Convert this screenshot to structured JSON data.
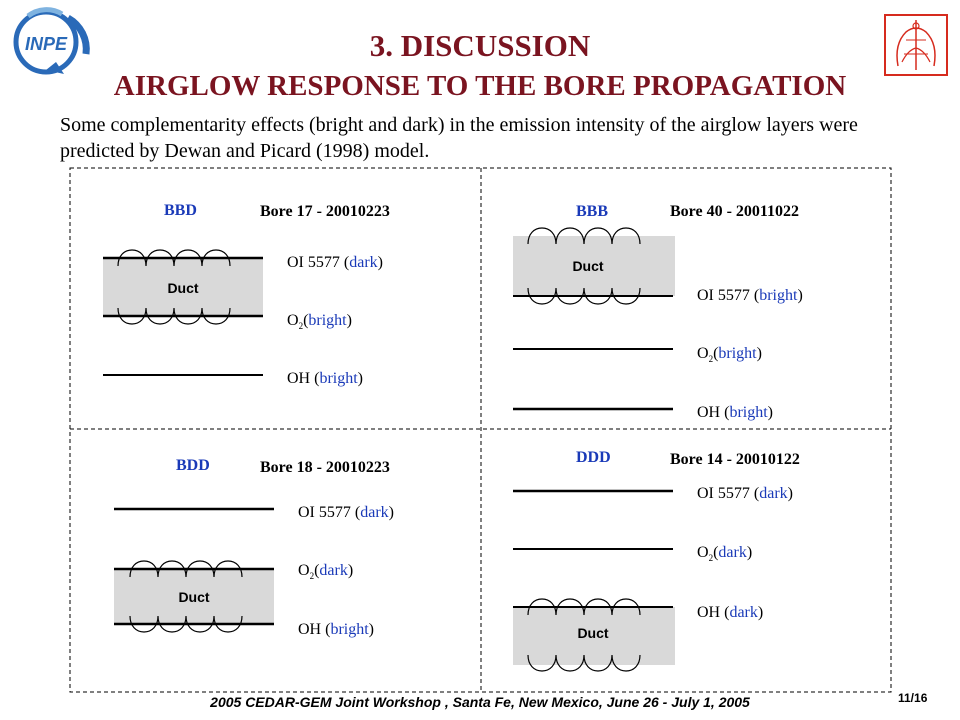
{
  "header": {
    "logo_text": "INPE",
    "title": "3. DISCUSSION",
    "subtitle": "AIRGLOW RESPONSE TO THE BORE PROPAGATION"
  },
  "intro": "Some complementarity effects (bright and dark) in the emission intensity of the airglow layers were predicted by Dewan and Picard (1998) model.",
  "panels": [
    {
      "code": "BBD",
      "bore": "Bore 17 - 20010223",
      "duct": "Duct",
      "layers": [
        {
          "name": "OI 5577 (",
          "state": "dark",
          "close": ")"
        },
        {
          "name": "O",
          "sub": "2",
          "name2": "(",
          "state": "bright",
          "close": ")"
        },
        {
          "name": "OH (",
          "state": "bright",
          "close": ")"
        }
      ]
    },
    {
      "code": "BBB",
      "bore": "Bore 40 - 20011022",
      "duct": "Duct",
      "layers": [
        {
          "name": "OI 5577 (",
          "state": "bright",
          "close": ")"
        },
        {
          "name": "O",
          "sub": "2",
          "name2": "(",
          "state": "bright",
          "close": ")"
        },
        {
          "name": "OH (",
          "state": "bright",
          "close": ")"
        }
      ]
    },
    {
      "code": "BDD",
      "bore": "Bore 18 - 20010223",
      "duct": "Duct",
      "layers": [
        {
          "name": "OI 5577 (",
          "state": "dark",
          "close": ")"
        },
        {
          "name": "O",
          "sub": "2",
          "name2": "(",
          "state": "dark",
          "close": ")"
        },
        {
          "name": "OH (",
          "state": "bright",
          "close": ")"
        }
      ]
    },
    {
      "code": "DDD",
      "bore": "Bore 14 - 20010122",
      "duct": "Duct",
      "layers": [
        {
          "name": "OI 5577 (",
          "state": "dark",
          "close": ")"
        },
        {
          "name": "O",
          "sub": "2",
          "name2": "(",
          "state": "dark",
          "close": ")"
        },
        {
          "name": "OH (",
          "state": "dark",
          "close": ")"
        }
      ]
    }
  ],
  "footer": "2005 CEDAR-GEM Joint Workshop , Santa Fe, New Mexico, June 26 - July 1, 2005",
  "page_number": "11/16",
  "colors": {
    "title": "#7a1420",
    "code": "#1a3ab8",
    "state": "#1a3ab8",
    "duct_fill": "#d9d9d9",
    "logo_red": "#d62b1e",
    "logo_blue": "#2a6ab8"
  }
}
